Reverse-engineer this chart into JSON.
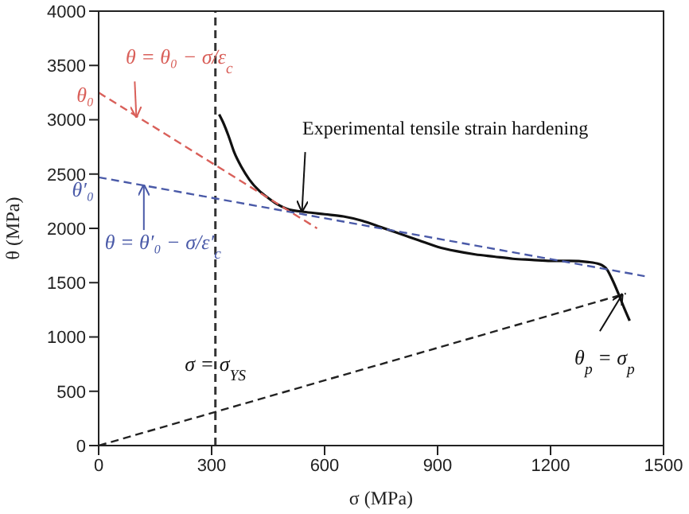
{
  "chart_data": {
    "type": "line",
    "xlabel": "σ (MPa)",
    "ylabel": "θ (MPa)",
    "xlim": [
      0,
      1500
    ],
    "xticks": [
      0,
      300,
      600,
      900,
      1200,
      1500
    ],
    "ylim": [
      0,
      4000
    ],
    "yticks": [
      0,
      500,
      1000,
      1500,
      2000,
      2500,
      3000,
      3500,
      4000
    ],
    "marker": "none",
    "series": [
      {
        "color": "#111111",
        "line_style": "solid",
        "x": [
          320,
          330,
          345,
          360,
          380,
          400,
          425,
          450,
          475,
          500,
          550,
          600,
          650,
          700,
          750,
          800,
          850,
          900,
          950,
          1000,
          1050,
          1100,
          1150,
          1200,
          1250,
          1300,
          1330,
          1350,
          1365,
          1380,
          1395,
          1410
        ],
        "values": [
          3050,
          2980,
          2850,
          2700,
          2560,
          2450,
          2350,
          2280,
          2220,
          2180,
          2150,
          2130,
          2110,
          2070,
          2010,
          1950,
          1890,
          1830,
          1790,
          1760,
          1740,
          1720,
          1710,
          1700,
          1700,
          1690,
          1670,
          1620,
          1520,
          1400,
          1270,
          1150
        ]
      },
      {
        "color": "#d9605a",
        "line_style": "dashed",
        "x": [
          0,
          580
        ],
        "values": [
          3250,
          2000
        ]
      },
      {
        "color": "#4a5aa8",
        "line_style": "dashed",
        "x": [
          0,
          1450
        ],
        "values": [
          2470,
          1560
        ]
      },
      {
        "color": "#222222",
        "line_style": "dashed",
        "x": [
          0,
          1400
        ],
        "values": [
          0,
          1400
        ]
      }
    ],
    "ref_lines": [
      {
        "axis": "x",
        "value": 310,
        "color": "#333333",
        "line_style": "dashed"
      }
    ],
    "annotations": [
      {
        "text": "θ = θ₀ − σ/ε$_{c}$",
        "x": 100,
        "y": 3030
      },
      {
        "text": "θ₀",
        "x": 0,
        "y": 3250
      },
      {
        "text": "θ = θ′₀ − σ/ε′$_{c}$",
        "x": 120,
        "y": 2395
      },
      {
        "text": "θ′₀",
        "x": 0,
        "y": 2470
      },
      {
        "text": "Experimental tensile strain hardening",
        "x": 540,
        "y": 2160
      },
      {
        "text": "σ = σ$_{YS}$",
        "x": 310,
        "y": 750
      },
      {
        "text": "θ$_{p}$ = σ$_{p}$",
        "x": 1390,
        "y": 1390
      }
    ]
  }
}
